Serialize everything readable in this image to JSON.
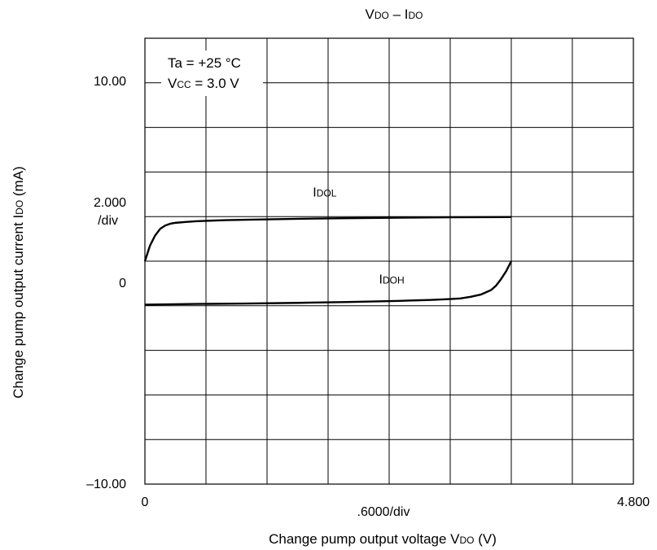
{
  "chart_data": {
    "type": "line",
    "title": {
      "main": "V",
      "sub1": "DO",
      "sep": " – I",
      "sub2": "DO"
    },
    "ylabel": {
      "main": "Change pump output current I",
      "sub": "DO",
      "unit": " (mA)"
    },
    "xlabel": {
      "main": "Change pump output voltage V",
      "sub": "DO",
      "unit": " (V)"
    },
    "xlim": [
      0,
      4.8
    ],
    "ylim": [
      -10,
      10
    ],
    "x_divisions": 8,
    "y_divisions": 10,
    "grid": true,
    "x_ticks": {
      "min": "0",
      "div": ".6000/div",
      "max": "4.800"
    },
    "y_ticks": {
      "max": "10.00",
      "div_value": "2.000",
      "div_unit": "/div",
      "zero": "0",
      "min": "–10.00"
    },
    "annotation": {
      "line1": "Ta = +25 °C",
      "line2_main": "V",
      "line2_sub": "CC",
      "line2_rest": " = 3.0 V"
    },
    "series": [
      {
        "name_main": "I",
        "name_sub": "DOL",
        "x": [
          0,
          0.05,
          0.1,
          0.15,
          0.2,
          0.25,
          0.3,
          0.4,
          0.5,
          0.6,
          0.8,
          1.0,
          1.5,
          2.0,
          2.5,
          3.0,
          3.6
        ],
        "y": [
          0.0,
          0.7,
          1.15,
          1.45,
          1.6,
          1.68,
          1.72,
          1.76,
          1.79,
          1.81,
          1.84,
          1.86,
          1.9,
          1.93,
          1.95,
          1.97,
          1.98
        ]
      },
      {
        "name_main": "I",
        "name_sub": "DOH",
        "x": [
          0,
          0.5,
          1.0,
          1.5,
          2.0,
          2.5,
          2.8,
          3.0,
          3.1,
          3.2,
          3.3,
          3.4,
          3.45,
          3.5,
          3.55,
          3.6
        ],
        "y": [
          -1.95,
          -1.92,
          -1.9,
          -1.87,
          -1.83,
          -1.78,
          -1.74,
          -1.7,
          -1.67,
          -1.6,
          -1.5,
          -1.3,
          -1.1,
          -0.8,
          -0.45,
          0.0
        ]
      }
    ],
    "series_label_positions": [
      {
        "x": 1.65,
        "y": 2.9
      },
      {
        "x": 2.3,
        "y": -1.0
      }
    ]
  }
}
